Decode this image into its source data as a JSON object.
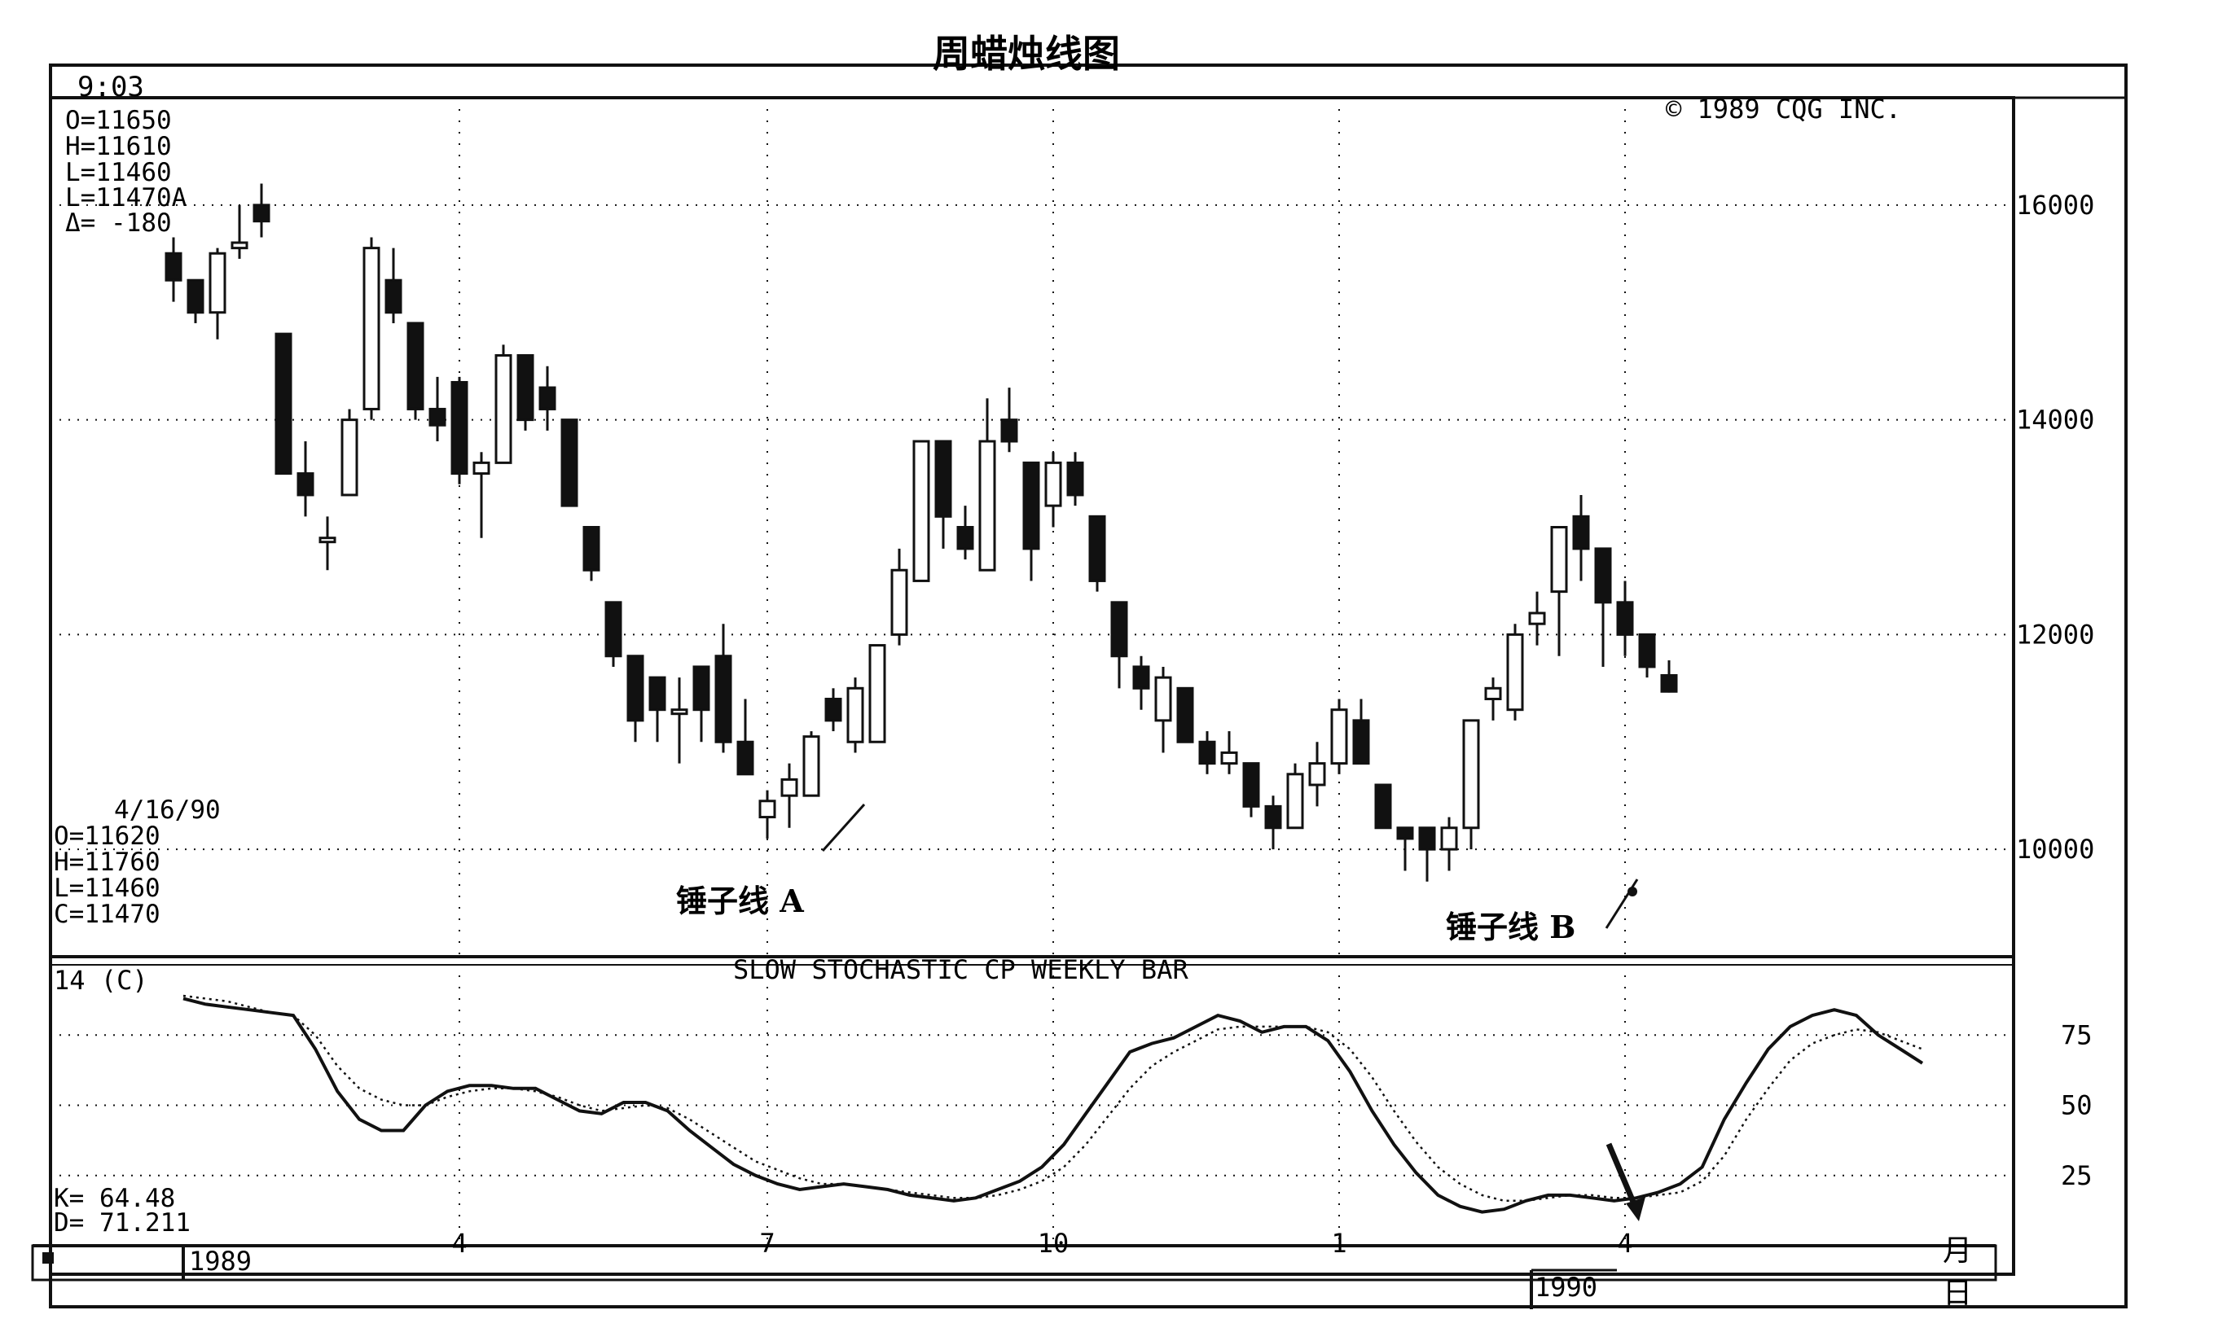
{
  "title": "周蜡烛线图",
  "time": "9:03",
  "copyright": "© 1989 CQG INC.",
  "quote_current": {
    "o": "O=11650",
    "h": "H=11610",
    "l": "L=11460",
    "last": "L=11470A",
    "delta": "Δ= -180"
  },
  "quote_date": {
    "date": "4/16/90",
    "o": "O=11620",
    "h": "H=11760",
    "l": "L=11460",
    "c": "C=11470"
  },
  "annotations": {
    "hammer_a": "锤子线 A",
    "hammer_b": "锤子线 B"
  },
  "stochastic": {
    "title": "SLOW STOCHASTIC CP WEEKLY BAR",
    "period": "14 (C)",
    "k_readout": "K= 64.48",
    "d_readout": "D= 71.211"
  },
  "axis_labels": {
    "month_unit": "月",
    "day_unit": "日",
    "year_1989": "1989",
    "year_1990": "1990"
  },
  "colors": {
    "ink": "#111111",
    "paper": "#ffffff"
  },
  "chart_data": [
    {
      "type": "candlestick",
      "title": "周蜡烛线图",
      "ylim": [
        9000,
        17000
      ],
      "yticks": [
        10000,
        12000,
        14000,
        16000
      ],
      "xticks": [
        {
          "label": "4",
          "index": 13
        },
        {
          "label": "7",
          "index": 27
        },
        {
          "label": "10",
          "index": 40
        },
        {
          "label": "1",
          "index": 53
        },
        {
          "label": "4",
          "index": 66
        }
      ],
      "grid": true,
      "candles": [
        [
          15550,
          15700,
          15100,
          15300
        ],
        [
          15300,
          15300,
          14900,
          15000
        ],
        [
          15000,
          15600,
          14750,
          15550
        ],
        [
          15600,
          16000,
          15500,
          15650
        ],
        [
          16000,
          16200,
          15700,
          15850
        ],
        [
          14800,
          14800,
          13500,
          13500
        ],
        [
          13500,
          13800,
          13100,
          13300
        ],
        [
          12900,
          13100,
          12600,
          12900
        ],
        [
          13300,
          14100,
          13300,
          14000
        ],
        [
          14100,
          15700,
          14000,
          15600
        ],
        [
          15300,
          15600,
          14900,
          15000
        ],
        [
          14900,
          14900,
          14000,
          14100
        ],
        [
          14100,
          14400,
          13800,
          13950
        ],
        [
          14350,
          14400,
          13400,
          13500
        ],
        [
          13500,
          13700,
          12900,
          13600
        ],
        [
          13600,
          14700,
          13600,
          14600
        ],
        [
          14600,
          14600,
          13900,
          14000
        ],
        [
          14300,
          14500,
          13900,
          14100
        ],
        [
          14000,
          14000,
          13200,
          13200
        ],
        [
          13000,
          13000,
          12500,
          12600
        ],
        [
          12300,
          12300,
          11700,
          11800
        ],
        [
          11800,
          11800,
          11000,
          11200
        ],
        [
          11600,
          11600,
          11000,
          11300
        ],
        [
          11300,
          11600,
          10800,
          11300
        ],
        [
          11700,
          11700,
          11000,
          11300
        ],
        [
          11800,
          12100,
          10900,
          11000
        ],
        [
          11000,
          11400,
          10700,
          10700
        ],
        [
          10300,
          10550,
          10100,
          10450
        ],
        [
          10500,
          10800,
          10200,
          10650
        ],
        [
          10500,
          11100,
          10500,
          11050
        ],
        [
          11400,
          11500,
          11100,
          11200
        ],
        [
          11000,
          11600,
          10900,
          11500
        ],
        [
          11000,
          11900,
          11000,
          11900
        ],
        [
          12000,
          12800,
          11900,
          12600
        ],
        [
          12500,
          13800,
          12500,
          13800
        ],
        [
          13800,
          13800,
          12800,
          13100
        ],
        [
          13000,
          13200,
          12700,
          12800
        ],
        [
          12600,
          14200,
          12600,
          13800
        ],
        [
          14000,
          14300,
          13700,
          13800
        ],
        [
          13600,
          13600,
          12500,
          12800
        ],
        [
          13200,
          13700,
          13000,
          13600
        ],
        [
          13600,
          13700,
          13200,
          13300
        ],
        [
          13100,
          13100,
          12400,
          12500
        ],
        [
          12300,
          12300,
          11500,
          11800
        ],
        [
          11700,
          11800,
          11300,
          11500
        ],
        [
          11200,
          11700,
          10900,
          11600
        ],
        [
          11500,
          11500,
          11000,
          11000
        ],
        [
          11000,
          11100,
          10700,
          10800
        ],
        [
          10800,
          11100,
          10700,
          10900
        ],
        [
          10800,
          10800,
          10300,
          10400
        ],
        [
          10400,
          10500,
          10000,
          10200
        ],
        [
          10200,
          10800,
          10200,
          10700
        ],
        [
          10600,
          11000,
          10400,
          10800
        ],
        [
          10800,
          11400,
          10700,
          11300
        ],
        [
          11200,
          11400,
          10800,
          10800
        ],
        [
          10600,
          10600,
          10200,
          10200
        ],
        [
          10200,
          10200,
          9800,
          10100
        ],
        [
          10200,
          10200,
          9700,
          10000
        ],
        [
          10000,
          10300,
          9800,
          10200
        ],
        [
          10200,
          11200,
          10000,
          11200
        ],
        [
          11400,
          11600,
          11200,
          11500
        ],
        [
          11300,
          12100,
          11200,
          12000
        ],
        [
          12100,
          12400,
          11900,
          12200
        ],
        [
          12400,
          13000,
          11800,
          13000
        ],
        [
          13100,
          13300,
          12500,
          12800
        ],
        [
          12800,
          12800,
          11700,
          12300
        ],
        [
          12300,
          12500,
          11800,
          12000
        ],
        [
          12000,
          12000,
          11600,
          11700
        ],
        [
          11620,
          11760,
          11460,
          11470
        ]
      ]
    },
    {
      "type": "line",
      "title": "SLOW STOCHASTIC CP WEEKLY BAR",
      "ylim": [
        0,
        100
      ],
      "yticks": [
        25,
        50,
        75
      ],
      "grid": true,
      "series": [
        {
          "name": "K",
          "style": "solid",
          "values": [
            88,
            86,
            85,
            84,
            83,
            82,
            70,
            55,
            45,
            41,
            41,
            50,
            55,
            57,
            57,
            56,
            56,
            52,
            48,
            47,
            51,
            51,
            48,
            41,
            35,
            29,
            25,
            22,
            20,
            21,
            22,
            21,
            20,
            18,
            17,
            16,
            17,
            20,
            23,
            28,
            36,
            47,
            58,
            69,
            72,
            74,
            78,
            82,
            80,
            76,
            78,
            78,
            73,
            62,
            48,
            36,
            26,
            18,
            14,
            12,
            13,
            16,
            18,
            18,
            17,
            16,
            17,
            19,
            22,
            28,
            45,
            58,
            70,
            78,
            82,
            84,
            82,
            75,
            70,
            65
          ]
        },
        {
          "name": "D",
          "style": "dotted",
          "values": [
            89,
            88,
            87,
            85,
            83,
            82,
            75,
            64,
            56,
            52,
            50,
            50,
            53,
            55,
            56,
            56,
            55,
            53,
            50,
            48,
            49,
            50,
            49,
            45,
            40,
            35,
            30,
            27,
            24,
            22,
            22,
            21,
            20,
            19,
            18,
            17,
            17,
            18,
            20,
            23,
            28,
            36,
            46,
            56,
            64,
            69,
            73,
            77,
            78,
            78,
            78,
            78,
            76,
            70,
            60,
            48,
            37,
            28,
            22,
            18,
            16,
            16,
            17,
            18,
            18,
            17,
            17,
            18,
            19,
            23,
            32,
            45,
            56,
            66,
            72,
            75,
            77,
            76,
            73,
            70
          ]
        }
      ]
    }
  ]
}
